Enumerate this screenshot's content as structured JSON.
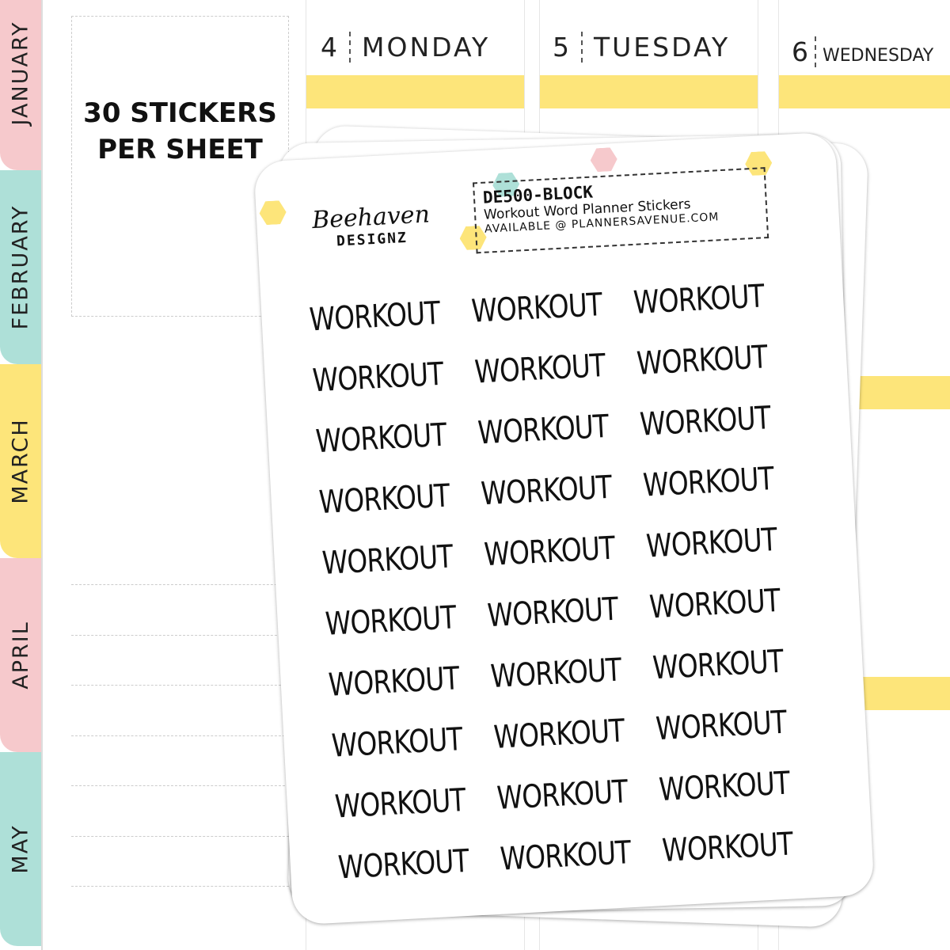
{
  "tabs": [
    {
      "label": "JANUARY",
      "color": "#f6c9cc"
    },
    {
      "label": "FEBRUARY",
      "color": "#aee0d8"
    },
    {
      "label": "MARCH",
      "color": "#fde57a"
    },
    {
      "label": "APRIL",
      "color": "#f6c9cc"
    },
    {
      "label": "MAY",
      "color": "#aee0d8"
    }
  ],
  "promo": {
    "line1": "30 STICKERS",
    "line2": "PER SHEET"
  },
  "days": [
    {
      "num": "4",
      "name": "MONDAY"
    },
    {
      "num": "5",
      "name": "TUESDAY"
    },
    {
      "num": "6",
      "name": "WEDNESDAY"
    }
  ],
  "highlight_color": "#fde57a",
  "sheet": {
    "logo_line1": "Beehaven",
    "logo_line2": "DESIGNZ",
    "code": "DE500-BLOCK",
    "title": "Workout Word Planner Stickers",
    "availability": "AVAILABLE @ PLANNERSAVENUE.COM",
    "sticker_word": "WORKOUT",
    "sticker_count": 30
  }
}
